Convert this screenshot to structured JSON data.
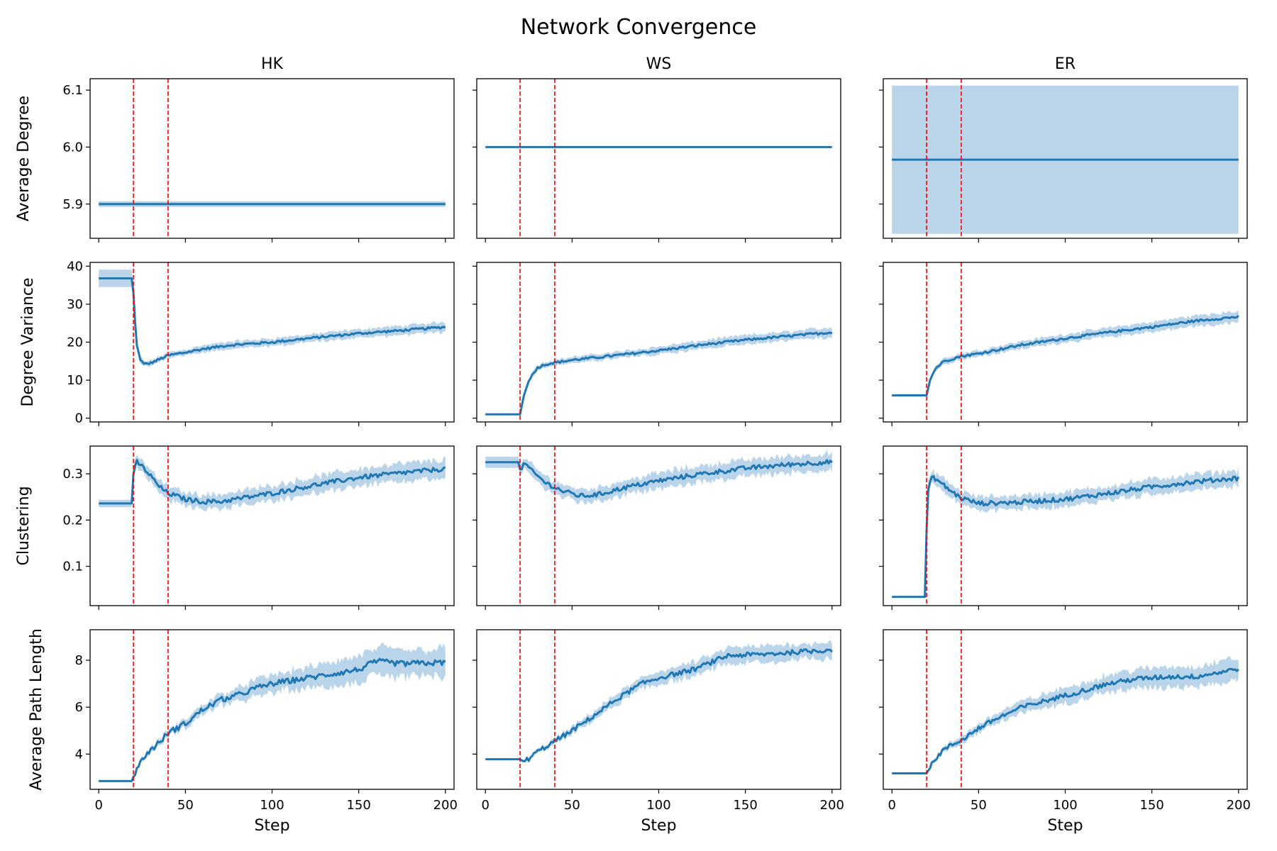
{
  "figure": {
    "title": "Network Convergence",
    "columns": [
      "HK",
      "WS",
      "ER"
    ],
    "rows": [
      "Average Degree",
      "Degree Variance",
      "Clustering",
      "Average Path Length"
    ],
    "xlabel": "Step",
    "xlim": [
      -5,
      205
    ],
    "xticks": [
      0,
      50,
      100,
      150,
      200
    ],
    "markers": [
      20,
      40
    ],
    "colors": {
      "line": "#1f77b4",
      "band": "#aecde6",
      "marker": "#ff0000",
      "axis": "#000000"
    }
  },
  "chart_data": [
    {
      "type": "line",
      "row": 0,
      "col": 0,
      "title": "HK",
      "ylabel": "Average Degree",
      "ylim": [
        5.84,
        6.12
      ],
      "yticks": [
        5.9,
        6.0,
        6.1
      ],
      "ytick_labels": [
        "5.9",
        "6.0",
        "6.1"
      ],
      "show_ytick_labels": true,
      "steps": [
        0,
        200
      ],
      "anchors": [
        [
          0,
          5.9,
          0.005
        ],
        [
          200,
          5.9,
          0.005
        ]
      ],
      "noise": 0
    },
    {
      "type": "line",
      "row": 0,
      "col": 1,
      "title": "WS",
      "ylabel": "",
      "ylim": [
        5.84,
        6.12
      ],
      "yticks": [
        5.9,
        6.0,
        6.1
      ],
      "ytick_labels": [
        "5.9",
        "6.0",
        "6.1"
      ],
      "show_ytick_labels": false,
      "steps": [
        0,
        200
      ],
      "anchors": [
        [
          0,
          6.0,
          0.0
        ],
        [
          200,
          6.0,
          0.0
        ]
      ],
      "noise": 0
    },
    {
      "type": "line",
      "row": 0,
      "col": 2,
      "title": "ER",
      "ylabel": "",
      "ylim": [
        5.84,
        6.12
      ],
      "yticks": [
        5.9,
        6.0,
        6.1
      ],
      "ytick_labels": [
        "5.9",
        "6.0",
        "6.1"
      ],
      "show_ytick_labels": false,
      "steps": [
        0,
        200
      ],
      "anchors": [
        [
          0,
          5.978,
          0.13
        ],
        [
          200,
          5.978,
          0.13
        ]
      ],
      "noise": 0
    },
    {
      "type": "line",
      "row": 1,
      "col": 0,
      "title": "HK",
      "ylabel": "Degree Variance",
      "ylim": [
        -1,
        41
      ],
      "yticks": [
        0,
        10,
        20,
        30,
        40
      ],
      "ytick_labels": [
        "0",
        "10",
        "20",
        "30",
        "40"
      ],
      "show_ytick_labels": true,
      "steps": [
        0,
        200
      ],
      "anchors": [
        [
          0,
          36.8,
          2.3
        ],
        [
          19,
          36.8,
          2.3
        ],
        [
          20,
          33,
          2.0
        ],
        [
          21,
          25,
          1.5
        ],
        [
          22,
          19,
          1.0
        ],
        [
          24,
          15.5,
          0.8
        ],
        [
          26,
          14.2,
          0.7
        ],
        [
          30,
          14.5,
          0.7
        ],
        [
          35,
          15.5,
          0.7
        ],
        [
          40,
          16.5,
          0.8
        ],
        [
          50,
          17.3,
          0.8
        ],
        [
          60,
          18.2,
          0.9
        ],
        [
          75,
          19.2,
          0.9
        ],
        [
          100,
          20.0,
          1.0
        ],
        [
          125,
          21.2,
          1.0
        ],
        [
          150,
          22.3,
          1.1
        ],
        [
          175,
          23.1,
          1.2
        ],
        [
          200,
          24.0,
          1.3
        ]
      ],
      "noise": 0.3
    },
    {
      "type": "line",
      "row": 1,
      "col": 1,
      "title": "WS",
      "ylabel": "",
      "ylim": [
        -1,
        41
      ],
      "yticks": [
        0,
        10,
        20,
        30,
        40
      ],
      "ytick_labels": [
        "0",
        "10",
        "20",
        "30",
        "40"
      ],
      "show_ytick_labels": false,
      "steps": [
        0,
        200
      ],
      "anchors": [
        [
          0,
          1.0,
          0.1
        ],
        [
          20,
          1.0,
          0.1
        ],
        [
          22,
          5.5,
          0.6
        ],
        [
          25,
          10,
          0.7
        ],
        [
          30,
          13.3,
          0.7
        ],
        [
          35,
          14.2,
          0.7
        ],
        [
          40,
          14.6,
          0.7
        ],
        [
          50,
          15.3,
          0.8
        ],
        [
          75,
          16.5,
          0.9
        ],
        [
          100,
          17.8,
          1.0
        ],
        [
          125,
          19.3,
          1.1
        ],
        [
          150,
          20.6,
          1.2
        ],
        [
          175,
          21.6,
          1.2
        ],
        [
          200,
          22.6,
          1.3
        ]
      ],
      "noise": 0.3
    },
    {
      "type": "line",
      "row": 1,
      "col": 2,
      "title": "ER",
      "ylabel": "",
      "ylim": [
        -1,
        41
      ],
      "yticks": [
        0,
        10,
        20,
        30,
        40
      ],
      "ytick_labels": [
        "0",
        "10",
        "20",
        "30",
        "40"
      ],
      "show_ytick_labels": false,
      "steps": [
        0,
        200
      ],
      "anchors": [
        [
          0,
          6.0,
          0.2
        ],
        [
          20,
          6.0,
          0.2
        ],
        [
          22,
          10,
          0.6
        ],
        [
          25,
          13,
          0.7
        ],
        [
          30,
          15,
          0.8
        ],
        [
          40,
          16.3,
          0.8
        ],
        [
          50,
          17,
          0.9
        ],
        [
          75,
          19.3,
          1.0
        ],
        [
          100,
          21,
          1.1
        ],
        [
          125,
          22.6,
          1.2
        ],
        [
          150,
          24.0,
          1.3
        ],
        [
          175,
          25.6,
          1.4
        ],
        [
          200,
          26.7,
          1.5
        ]
      ],
      "noise": 0.3
    },
    {
      "type": "line",
      "row": 2,
      "col": 0,
      "title": "HK",
      "ylabel": "Clustering",
      "ylim": [
        0.015,
        0.36
      ],
      "yticks": [
        0.1,
        0.2,
        0.3
      ],
      "ytick_labels": [
        "0.1",
        "0.2",
        "0.3"
      ],
      "show_ytick_labels": true,
      "steps": [
        0,
        200
      ],
      "anchors": [
        [
          0,
          0.236,
          0.008
        ],
        [
          19,
          0.236,
          0.008
        ],
        [
          20,
          0.3,
          0.012
        ],
        [
          22,
          0.326,
          0.012
        ],
        [
          25,
          0.316,
          0.013
        ],
        [
          30,
          0.295,
          0.014
        ],
        [
          35,
          0.272,
          0.015
        ],
        [
          40,
          0.258,
          0.015
        ],
        [
          50,
          0.245,
          0.015
        ],
        [
          60,
          0.24,
          0.015
        ],
        [
          70,
          0.24,
          0.016
        ],
        [
          80,
          0.246,
          0.016
        ],
        [
          100,
          0.258,
          0.017
        ],
        [
          125,
          0.276,
          0.018
        ],
        [
          150,
          0.292,
          0.019
        ],
        [
          175,
          0.302,
          0.02
        ],
        [
          200,
          0.311,
          0.02
        ]
      ],
      "noise": 0.005
    },
    {
      "type": "line",
      "row": 2,
      "col": 1,
      "title": "WS",
      "ylabel": "",
      "ylim": [
        0.015,
        0.36
      ],
      "yticks": [
        0.1,
        0.2,
        0.3
      ],
      "ytick_labels": [
        "0.1",
        "0.2",
        "0.3"
      ],
      "show_ytick_labels": false,
      "steps": [
        0,
        200
      ],
      "anchors": [
        [
          0,
          0.325,
          0.012
        ],
        [
          19,
          0.325,
          0.012
        ],
        [
          20,
          0.31,
          0.012
        ],
        [
          23,
          0.322,
          0.012
        ],
        [
          27,
          0.305,
          0.013
        ],
        [
          35,
          0.28,
          0.014
        ],
        [
          45,
          0.262,
          0.014
        ],
        [
          55,
          0.252,
          0.015
        ],
        [
          65,
          0.255,
          0.015
        ],
        [
          80,
          0.27,
          0.016
        ],
        [
          100,
          0.285,
          0.017
        ],
        [
          125,
          0.3,
          0.018
        ],
        [
          150,
          0.312,
          0.018
        ],
        [
          175,
          0.32,
          0.018
        ],
        [
          200,
          0.326,
          0.018
        ]
      ],
      "noise": 0.005
    },
    {
      "type": "line",
      "row": 2,
      "col": 2,
      "title": "ER",
      "ylabel": "",
      "ylim": [
        0.015,
        0.36
      ],
      "yticks": [
        0.1,
        0.2,
        0.3
      ],
      "ytick_labels": [
        "0.1",
        "0.2",
        "0.3"
      ],
      "show_ytick_labels": false,
      "steps": [
        0,
        200
      ],
      "anchors": [
        [
          0,
          0.034,
          0.001
        ],
        [
          19,
          0.034,
          0.001
        ],
        [
          20,
          0.18,
          0.01
        ],
        [
          21,
          0.265,
          0.012
        ],
        [
          23,
          0.292,
          0.012
        ],
        [
          25,
          0.29,
          0.013
        ],
        [
          30,
          0.275,
          0.014
        ],
        [
          35,
          0.26,
          0.014
        ],
        [
          40,
          0.248,
          0.014
        ],
        [
          50,
          0.236,
          0.014
        ],
        [
          70,
          0.238,
          0.015
        ],
        [
          100,
          0.245,
          0.015
        ],
        [
          125,
          0.258,
          0.016
        ],
        [
          150,
          0.272,
          0.016
        ],
        [
          175,
          0.283,
          0.016
        ],
        [
          200,
          0.291,
          0.017
        ]
      ],
      "noise": 0.005
    },
    {
      "type": "line",
      "row": 3,
      "col": 0,
      "title": "HK",
      "ylabel": "Average Path Length",
      "ylim": [
        2.5,
        9.3
      ],
      "yticks": [
        4,
        6,
        8
      ],
      "ytick_labels": [
        "4",
        "6",
        "8"
      ],
      "show_ytick_labels": true,
      "steps": [
        0,
        200
      ],
      "anchors": [
        [
          0,
          2.85,
          0.03
        ],
        [
          19,
          2.85,
          0.03
        ],
        [
          22,
          3.4,
          0.08
        ],
        [
          28,
          4.05,
          0.1
        ],
        [
          35,
          4.5,
          0.12
        ],
        [
          40,
          4.9,
          0.14
        ],
        [
          50,
          5.3,
          0.18
        ],
        [
          60,
          5.9,
          0.22
        ],
        [
          70,
          6.3,
          0.26
        ],
        [
          80,
          6.5,
          0.3
        ],
        [
          90,
          6.8,
          0.35
        ],
        [
          100,
          7.0,
          0.38
        ],
        [
          125,
          7.3,
          0.45
        ],
        [
          150,
          7.6,
          0.55
        ],
        [
          160,
          7.95,
          0.6
        ],
        [
          175,
          7.85,
          0.6
        ],
        [
          200,
          7.9,
          0.6
        ]
      ],
      "noise": 0.12
    },
    {
      "type": "line",
      "row": 3,
      "col": 1,
      "title": "WS",
      "ylabel": "",
      "ylim": [
        2.5,
        9.3
      ],
      "yticks": [
        4,
        6,
        8
      ],
      "ytick_labels": [
        "4",
        "6",
        "8"
      ],
      "show_ytick_labels": false,
      "steps": [
        0,
        200
      ],
      "anchors": [
        [
          0,
          3.78,
          0.02
        ],
        [
          20,
          3.78,
          0.02
        ],
        [
          22,
          3.68,
          0.04
        ],
        [
          25,
          3.8,
          0.06
        ],
        [
          30,
          4.1,
          0.08
        ],
        [
          40,
          4.55,
          0.12
        ],
        [
          50,
          5.0,
          0.15
        ],
        [
          60,
          5.5,
          0.18
        ],
        [
          75,
          6.3,
          0.22
        ],
        [
          90,
          7.0,
          0.25
        ],
        [
          100,
          7.25,
          0.28
        ],
        [
          120,
          7.6,
          0.3
        ],
        [
          140,
          8.2,
          0.32
        ],
        [
          160,
          8.25,
          0.35
        ],
        [
          180,
          8.35,
          0.35
        ],
        [
          200,
          8.45,
          0.35
        ]
      ],
      "noise": 0.1
    },
    {
      "type": "line",
      "row": 3,
      "col": 2,
      "title": "ER",
      "ylabel": "",
      "ylim": [
        2.5,
        9.3
      ],
      "yticks": [
        4,
        6,
        8
      ],
      "ytick_labels": [
        "4",
        "6",
        "8"
      ],
      "show_ytick_labels": false,
      "steps": [
        0,
        200
      ],
      "anchors": [
        [
          0,
          3.18,
          0.02
        ],
        [
          20,
          3.18,
          0.02
        ],
        [
          25,
          3.8,
          0.08
        ],
        [
          30,
          4.2,
          0.1
        ],
        [
          40,
          4.6,
          0.15
        ],
        [
          50,
          5.1,
          0.2
        ],
        [
          60,
          5.5,
          0.22
        ],
        [
          75,
          6.0,
          0.26
        ],
        [
          90,
          6.3,
          0.3
        ],
        [
          100,
          6.5,
          0.32
        ],
        [
          115,
          6.8,
          0.35
        ],
        [
          125,
          7.0,
          0.38
        ],
        [
          140,
          7.2,
          0.4
        ],
        [
          160,
          7.3,
          0.42
        ],
        [
          175,
          7.3,
          0.42
        ],
        [
          190,
          7.5,
          0.45
        ],
        [
          200,
          7.65,
          0.45
        ]
      ],
      "noise": 0.1
    }
  ]
}
